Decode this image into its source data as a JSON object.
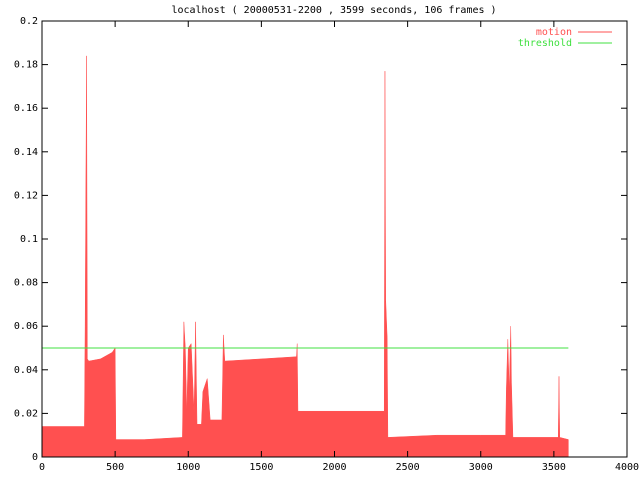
{
  "chart_data": {
    "type": "area",
    "title": "localhost ( 20000531-2200 , 3599 seconds, 106 frames )",
    "series": [
      {
        "name": "motion",
        "type": "area",
        "color": "#ff5050",
        "x": [
          0,
          290,
          295,
          300,
          305,
          310,
          320,
          400,
          480,
          500,
          505,
          700,
          960,
          970,
          980,
          990,
          1000,
          1020,
          1040,
          1050,
          1060,
          1090,
          1100,
          1130,
          1150,
          1230,
          1240,
          1250,
          1500,
          1740,
          1745,
          1750,
          2000,
          2340,
          2345,
          2350,
          2360,
          2365,
          2700,
          3000,
          3170,
          3175,
          3185,
          3195,
          3205,
          3210,
          3220,
          3530,
          3535,
          3540,
          3599
        ],
        "values": [
          0.014,
          0.014,
          0.06,
          0.125,
          0.184,
          0.045,
          0.044,
          0.045,
          0.048,
          0.05,
          0.008,
          0.008,
          0.009,
          0.062,
          0.05,
          0.02,
          0.05,
          0.052,
          0.02,
          0.062,
          0.015,
          0.015,
          0.03,
          0.036,
          0.017,
          0.017,
          0.056,
          0.044,
          0.045,
          0.046,
          0.052,
          0.021,
          0.021,
          0.021,
          0.177,
          0.072,
          0.055,
          0.009,
          0.01,
          0.01,
          0.01,
          0.031,
          0.054,
          0.03,
          0.06,
          0.034,
          0.009,
          0.009,
          0.037,
          0.009,
          0.008
        ]
      },
      {
        "name": "threshold",
        "type": "line",
        "color": "#40e040",
        "x": [
          0,
          3599
        ],
        "values": [
          0.05,
          0.05
        ]
      }
    ],
    "xlim": [
      0,
      4000
    ],
    "xticks": [
      0,
      500,
      1000,
      1500,
      2000,
      2500,
      3000,
      3500,
      4000
    ],
    "ylim": [
      0,
      0.2
    ],
    "yticks": [
      0,
      0.02,
      0.04,
      0.06,
      0.08,
      0.1,
      0.12,
      0.14,
      0.16,
      0.18,
      0.2
    ],
    "legend": "top-right"
  }
}
